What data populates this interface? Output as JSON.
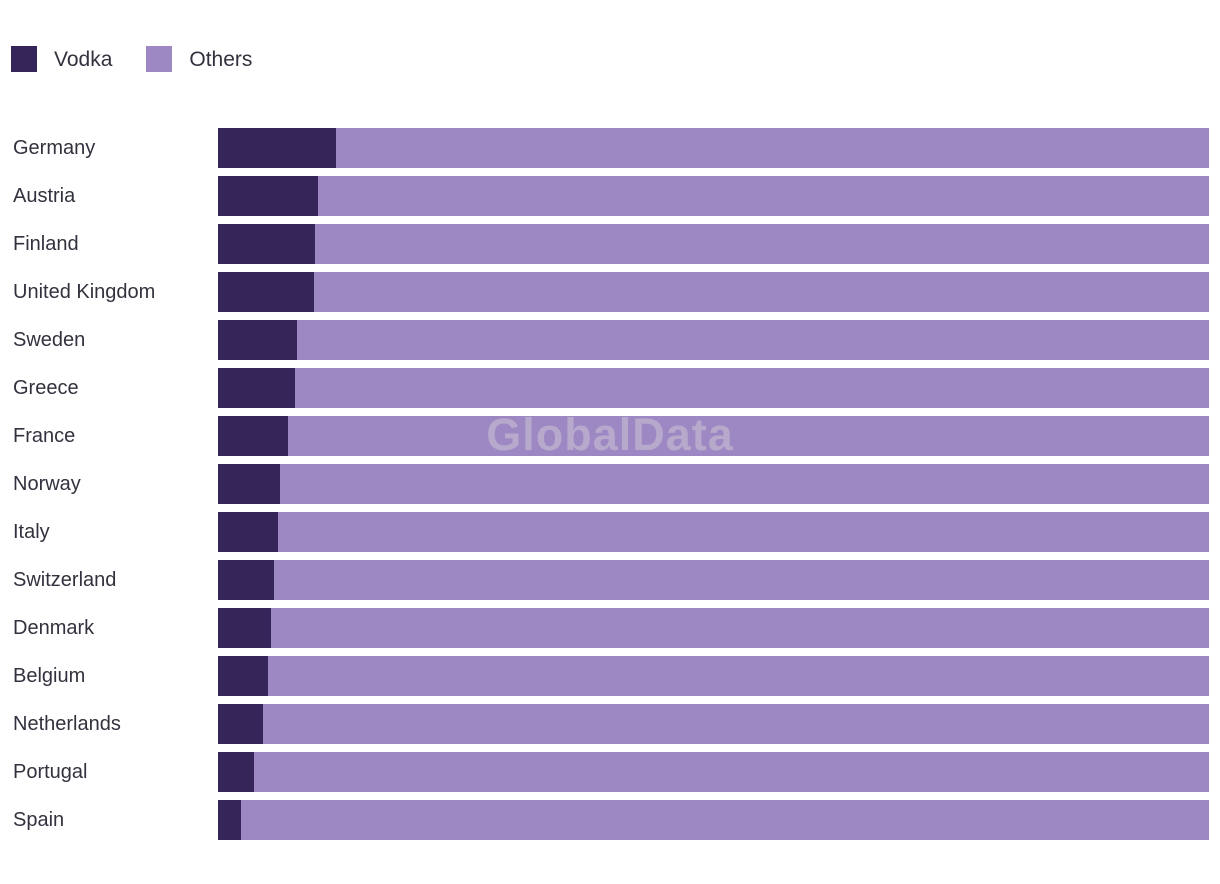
{
  "chart_data": {
    "type": "bar",
    "orientation": "horizontal",
    "stacked": true,
    "units": "percent share of full bar (100%)",
    "title": "",
    "xlabel": "",
    "ylabel": "",
    "xlim": [
      0,
      100
    ],
    "grid": false,
    "legend_position": "top-left",
    "categories": [
      "Germany",
      "Austria",
      "Finland",
      "United Kingdom",
      "Sweden",
      "Greece",
      "France",
      "Norway",
      "Italy",
      "Switzerland",
      "Denmark",
      "Belgium",
      "Netherlands",
      "Portugal",
      "Spain"
    ],
    "series": [
      {
        "name": "Vodka",
        "color": "#362559",
        "values": [
          11.9,
          10.1,
          9.8,
          9.7,
          8.0,
          7.8,
          7.1,
          6.3,
          6.1,
          5.7,
          5.3,
          5.0,
          4.5,
          3.6,
          2.3
        ]
      },
      {
        "name": "Others",
        "color": "#9e88c3",
        "values": [
          88.1,
          89.9,
          90.2,
          90.3,
          92.0,
          92.2,
          92.9,
          93.7,
          93.9,
          94.3,
          94.7,
          95.0,
          95.5,
          96.4,
          97.7
        ]
      }
    ]
  },
  "watermark": {
    "text": "GlobalData",
    "color": "#cdc9d6"
  }
}
